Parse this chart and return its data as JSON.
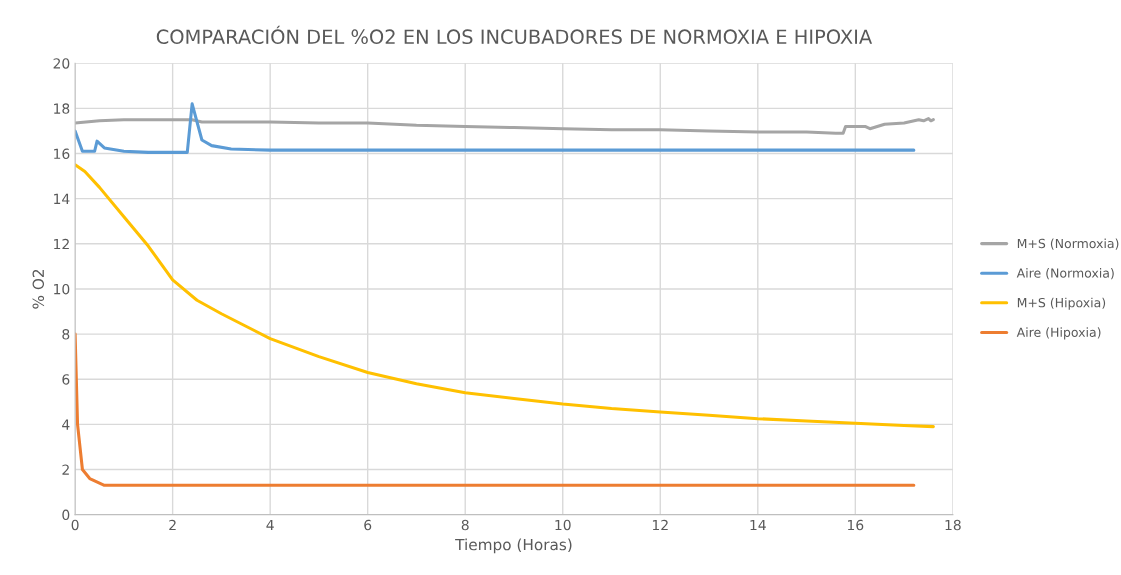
{
  "chart_data": {
    "type": "line",
    "title": "COMPARACIÓN DEL %O2 EN LOS INCUBADORES DE NORMOXIA E HIPOXIA",
    "xlabel": "Tiempo (Horas)",
    "ylabel": "% O2",
    "xlim": [
      0,
      18
    ],
    "xticks": [
      0,
      2,
      4,
      6,
      8,
      10,
      12,
      14,
      16,
      18
    ],
    "ylim": [
      0,
      20
    ],
    "yticks": [
      0,
      2,
      4,
      6,
      8,
      10,
      12,
      14,
      16,
      18,
      20
    ],
    "grid": true,
    "legend": "right",
    "marker": "none",
    "line_style": "solid",
    "series": [
      {
        "name": "M+S (Normoxia)",
        "color": "#a5a5a5",
        "x": [
          0,
          0.5,
          1,
          2,
          2.4,
          2.6,
          3,
          4,
          5,
          6,
          7,
          8,
          9,
          10,
          11,
          12,
          13,
          14,
          15,
          15.6,
          15.75,
          15.8,
          16.2,
          16.3,
          16.6,
          17,
          17.3,
          17.4,
          17.5,
          17.55,
          17.6
        ],
        "values": [
          17.35,
          17.45,
          17.5,
          17.5,
          17.5,
          17.4,
          17.4,
          17.4,
          17.35,
          17.35,
          17.25,
          17.2,
          17.15,
          17.1,
          17.05,
          17.05,
          17.0,
          16.95,
          16.95,
          16.9,
          16.9,
          17.2,
          17.2,
          17.1,
          17.3,
          17.35,
          17.5,
          17.45,
          17.55,
          17.45,
          17.5
        ]
      },
      {
        "name": "Aire (Normoxia)",
        "color": "#5b9bd5",
        "x": [
          0,
          0.15,
          0.4,
          0.45,
          0.6,
          1,
          1.5,
          2,
          2.3,
          2.4,
          2.6,
          2.8,
          3.2,
          4,
          6,
          8,
          10,
          12,
          14,
          16,
          17.2
        ],
        "values": [
          17.0,
          16.1,
          16.1,
          16.55,
          16.25,
          16.1,
          16.05,
          16.05,
          16.05,
          18.2,
          16.6,
          16.35,
          16.2,
          16.15,
          16.15,
          16.15,
          16.15,
          16.15,
          16.15,
          16.15,
          16.15
        ]
      },
      {
        "name": "M+S (Hipoxia)",
        "color": "#ffc000",
        "x": [
          0,
          0.2,
          0.5,
          1,
          1.5,
          2,
          2.5,
          3,
          4,
          5,
          6,
          7,
          8,
          9,
          10,
          11,
          12,
          13,
          14,
          15,
          16,
          17,
          17.6
        ],
        "values": [
          15.5,
          15.2,
          14.5,
          13.2,
          11.9,
          10.4,
          9.5,
          8.9,
          7.8,
          7.0,
          6.3,
          5.8,
          5.4,
          5.15,
          4.9,
          4.7,
          4.55,
          4.4,
          4.25,
          4.15,
          4.05,
          3.95,
          3.9
        ]
      },
      {
        "name": "Aire (Hipoxia)",
        "color": "#ed7d31",
        "x": [
          0,
          0.05,
          0.15,
          0.3,
          0.6,
          1,
          17.2
        ],
        "values": [
          8.0,
          4.0,
          2.0,
          1.6,
          1.3,
          1.3,
          1.3
        ]
      }
    ]
  }
}
